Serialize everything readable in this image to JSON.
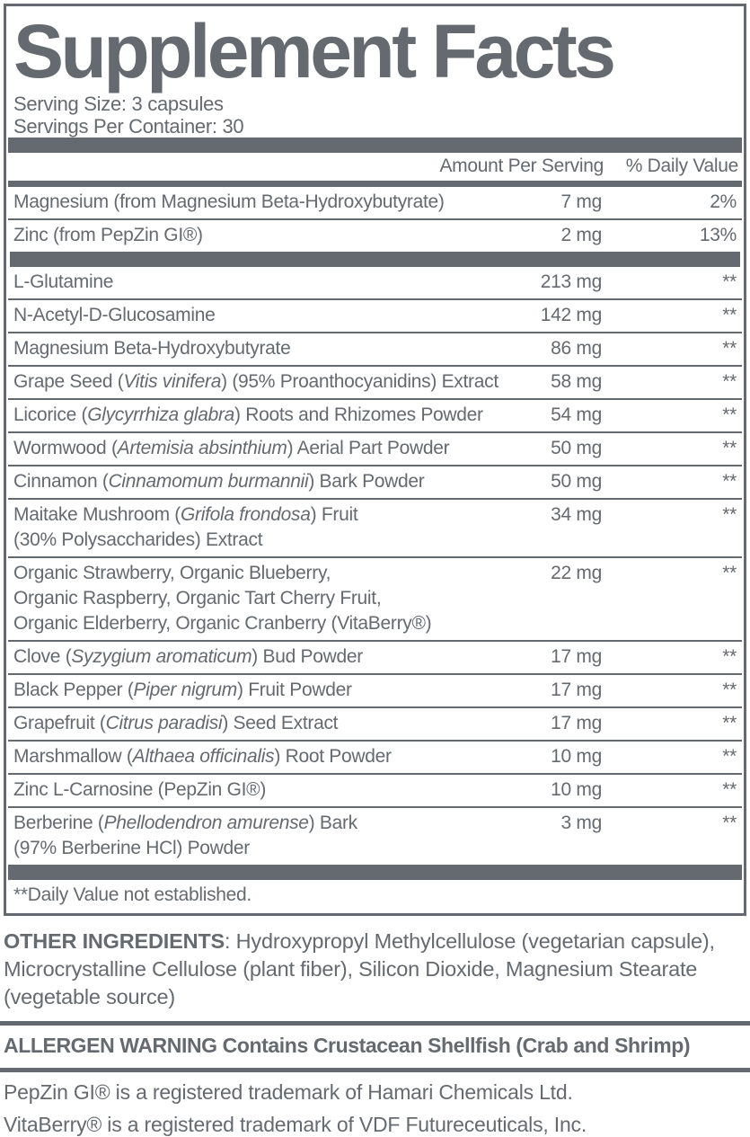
{
  "colors": {
    "ink": "#646a70",
    "background": "#ffffff"
  },
  "label": {
    "title": "Supplement Facts",
    "serving_size": "Serving Size: 3 capsules",
    "servings_per_container": "Servings Per Container: 30",
    "header": {
      "amount": "Amount Per Serving",
      "dv": "% Daily Value"
    },
    "rows": [
      {
        "name": "Magnesium (from Magnesium Beta-Hydroxybutyrate)",
        "amount": "7 mg",
        "dv": "2%",
        "sep": "none"
      },
      {
        "name": "Zinc (from PepZin GI®)",
        "amount": "2 mg",
        "dv": "13%",
        "sep": "line"
      },
      {
        "name": "L-Glutamine",
        "amount": "213 mg",
        "dv": "**",
        "sep": "bar"
      },
      {
        "name": "N-Acetyl-D-Glucosamine",
        "amount": "142 mg",
        "dv": "**",
        "sep": "line"
      },
      {
        "name": "Magnesium Beta-Hydroxybutyrate",
        "amount": "86 mg",
        "dv": "**",
        "sep": "line"
      },
      {
        "name": "Grape Seed (*Vitis vinifera*) (95% Proanthocyanidins) Extract",
        "amount": "58 mg",
        "dv": "**",
        "sep": "line"
      },
      {
        "name": "Licorice (*Glycyrrhiza glabra*) Roots and Rhizomes Powder",
        "amount": "54 mg",
        "dv": "**",
        "sep": "line"
      },
      {
        "name": "Wormwood (*Artemisia absinthium*) Aerial Part Powder",
        "amount": "50 mg",
        "dv": "**",
        "sep": "line"
      },
      {
        "name": "Cinnamon (*Cinnamomum burmannii*) Bark Powder",
        "amount": "50 mg",
        "dv": "**",
        "sep": "line"
      },
      {
        "name": "Maitake Mushroom (*Grifola frondosa*) Fruit\n(30% Polysaccharides) Extract",
        "amount": "34 mg",
        "dv": "**",
        "sep": "line"
      },
      {
        "name": "Organic Strawberry, Organic Blueberry,\nOrganic Raspberry, Organic Tart Cherry Fruit,\nOrganic Elderberry, Organic Cranberry (VitaBerry®)",
        "amount": "22 mg",
        "dv": "**",
        "sep": "line"
      },
      {
        "name": "Clove (*Syzygium aromaticum*) Bud Powder",
        "amount": "17 mg",
        "dv": "**",
        "sep": "line"
      },
      {
        "name": "Black Pepper (*Piper nigrum*) Fruit Powder",
        "amount": "17 mg",
        "dv": "**",
        "sep": "line"
      },
      {
        "name": "Grapefruit (*Citrus paradisi*) Seed Extract",
        "amount": "17 mg",
        "dv": "**",
        "sep": "line"
      },
      {
        "name": "Marshmallow (*Althaea officinalis*) Root Powder",
        "amount": "10 mg",
        "dv": "**",
        "sep": "line"
      },
      {
        "name": "Zinc L-Carnosine (PepZin GI®)",
        "amount": "10 mg",
        "dv": "**",
        "sep": "line"
      },
      {
        "name": "Berberine (*Phellodendron amurense*) Bark\n(97% Berberine HCl) Powder",
        "amount": "3 mg",
        "dv": "**",
        "sep": "line"
      }
    ],
    "footnote": "**Daily Value not established."
  },
  "other_ingredients": {
    "label": "OTHER INGREDIENTS",
    "text": ": Hydroxypropyl Methylcellulose (vegetarian capsule), Microcrystalline Cellulose (plant fiber), Silicon Dioxide, Magnesium Stearate (vegetable source)"
  },
  "allergen": {
    "label": "ALLERGEN WARNING",
    "text": " Contains Crustacean Shellfish (Crab and Shrimp)"
  },
  "trademarks": [
    "PepZin GI® is a registered trademark of Hamari Chemicals Ltd.",
    "VitaBerry® is a registered trademark of VDF Futureceuticals, Inc."
  ]
}
